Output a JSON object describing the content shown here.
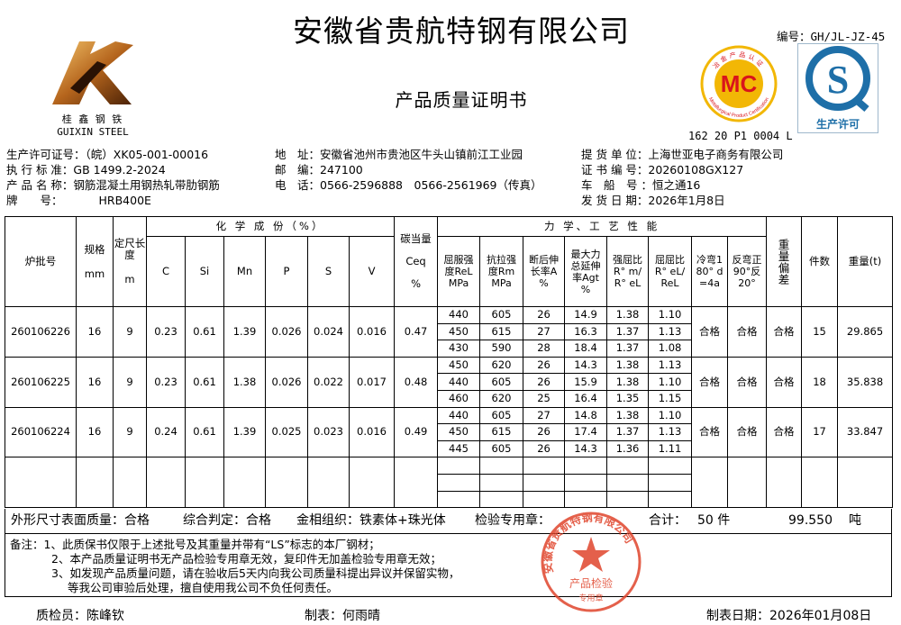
{
  "company_title": "安徽省贵航特钢有限公司",
  "doc_title": "产品质量证明书",
  "doc_number": "编号：GH/JL-JZ-45",
  "logo": {
    "text_cn": "桂 鑫 钢 铁",
    "text_en": "GUIXIN STEEL"
  },
  "mc_mark": {
    "text": "MC",
    "ring_cn": "冶金产品认证",
    "ring_en": "Metallurgical Product Certification",
    "cert_code": "162 20 P1 0004 L"
  },
  "qs_mark": {
    "text": "生产许可"
  },
  "info_left": [
    {
      "label": "生产许可证号：",
      "value": "（皖）XK05-001-00016"
    },
    {
      "label": "执 行 标 准：",
      "value": "GB 1499.2-2024"
    },
    {
      "label": "产 品 名 称：",
      "value": "钢筋混凝土用钢热轧带肋钢筋"
    },
    {
      "label": "牌　　号：",
      "value": "HRB400E"
    }
  ],
  "info_mid": [
    {
      "label": "地　址：",
      "value": "安徽省池州市贵池区牛头山镇前江工业园"
    },
    {
      "label": "邮　编：",
      "value": "247100"
    },
    {
      "label": "电　话：",
      "value": "0566-2596888　0566-2561969（传真）"
    }
  ],
  "info_right": [
    {
      "label": "提 货 单 位：",
      "value": "上海世亚电子商务有限公司"
    },
    {
      "label": "证 书 编 号：",
      "value": "20260108GX127"
    },
    {
      "label": "车　船　号 ：",
      "value": "恒之通16"
    },
    {
      "label": "发 货 日 期：",
      "value": "2026年1月8日"
    }
  ],
  "table": {
    "headers": {
      "batch": "炉批号",
      "spec": "规格",
      "spec_unit": "mm",
      "length": "定尺长度",
      "length_unit": "m",
      "chem": "化 学 成 份（%）",
      "chem_cols": [
        "C",
        "Si",
        "Mn",
        "P",
        "S",
        "V"
      ],
      "ceq": "碳当量",
      "ceq_sym": "Ceq",
      "ceq_unit": "%",
      "mech": "力 学、工 艺 性 能",
      "mech_cols": [
        "屈服强度ReL MPa",
        "抗拉强度Rm MPa",
        "断后伸长率A %",
        "最大力总延伸率Agt %",
        "强屈比R° m/R° eL",
        "屈屈比R° eL/ReL",
        "冷弯180° d=4a",
        "反弯正90°反20°"
      ],
      "weight_dev": "重量偏差",
      "pieces": "件数",
      "weight": "重量(t)"
    },
    "rows": [
      {
        "batch": "260106226",
        "spec": "16",
        "length": "9",
        "chem": [
          "0.23",
          "0.61",
          "1.39",
          "0.026",
          "0.024",
          "0.016"
        ],
        "ceq": "0.47",
        "mech": [
          [
            "440",
            "605",
            "26",
            "14.9",
            "1.38",
            "1.10"
          ],
          [
            "450",
            "615",
            "27",
            "16.3",
            "1.37",
            "1.13"
          ],
          [
            "430",
            "590",
            "28",
            "18.4",
            "1.37",
            "1.08"
          ]
        ],
        "cold_bend": "合格",
        "rebend": "合格",
        "weight_dev": "合格",
        "pieces": "15",
        "weight": "29.865"
      },
      {
        "batch": "260106225",
        "spec": "16",
        "length": "9",
        "chem": [
          "0.23",
          "0.61",
          "1.38",
          "0.026",
          "0.022",
          "0.017"
        ],
        "ceq": "0.48",
        "mech": [
          [
            "450",
            "620",
            "26",
            "14.3",
            "1.38",
            "1.13"
          ],
          [
            "440",
            "605",
            "26",
            "15.9",
            "1.38",
            "1.10"
          ],
          [
            "460",
            "620",
            "25",
            "16.4",
            "1.35",
            "1.15"
          ]
        ],
        "cold_bend": "合格",
        "rebend": "合格",
        "weight_dev": "合格",
        "pieces": "18",
        "weight": "35.838"
      },
      {
        "batch": "260106224",
        "spec": "16",
        "length": "9",
        "chem": [
          "0.24",
          "0.61",
          "1.39",
          "0.025",
          "0.023",
          "0.016"
        ],
        "ceq": "0.49",
        "mech": [
          [
            "440",
            "605",
            "27",
            "14.8",
            "1.38",
            "1.10"
          ],
          [
            "450",
            "615",
            "26",
            "17.4",
            "1.37",
            "1.13"
          ],
          [
            "445",
            "605",
            "26",
            "14.3",
            "1.36",
            "1.11"
          ]
        ],
        "cold_bend": "合格",
        "rebend": "合格",
        "weight_dev": "合格",
        "pieces": "17",
        "weight": "33.847"
      }
    ]
  },
  "summary": {
    "appearance": "外形尺寸表面质量：合格",
    "judgement": "综合判定：合格",
    "metallography": "金相组织：铁素体+珠光体",
    "stamp_label": "检验专用章：",
    "total_label": "合计：",
    "total_pieces": "50 件",
    "total_weight": "99.550",
    "weight_unit": "吨"
  },
  "notes": [
    "备注：1、此质保书仅限于上述批号及其重量并带有“LS”标志的本厂钢材；",
    "2、本产品质量证明书无产品检验专用章无效，复印件无加盖检验专用章无效；",
    "3、如发现产品质量问题，请在验收后5天内向我公司质量科提出异议并保留实物，",
    "等我公司审验后处理，擅自使用我公司不负任何责任。"
  ],
  "seal": {
    "ring": "安徽省贵航特钢有限公司",
    "center": "产品检验",
    "bottom": "专用章"
  },
  "footer": {
    "inspector": "质检员：陈峰钦",
    "tabulator": "制表：何雨晴",
    "date": "制表日期：2026年01月08日"
  },
  "colors": {
    "seal_red": "#e0452c",
    "qs_blue": "#1e6fa8",
    "mc_gold": "#f2b705",
    "mc_red": "#d9141b"
  }
}
